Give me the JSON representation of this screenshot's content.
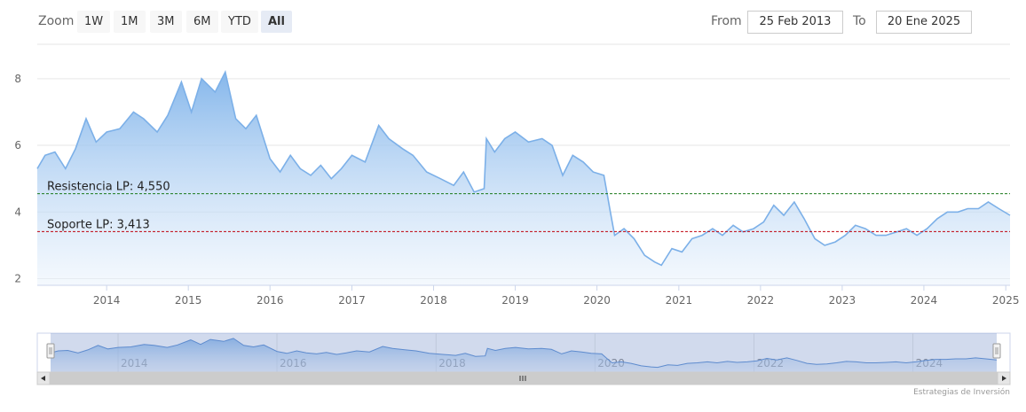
{
  "toolbar": {
    "zoom_label": "Zoom",
    "buttons": [
      "1W",
      "1M",
      "3M",
      "6M",
      "YTD",
      "All"
    ],
    "active_button": "All",
    "from_label": "From",
    "from_value": "25 Feb 2013",
    "to_label": "To",
    "to_value": "20 Ene 2025"
  },
  "credit": "Estrategias de Inversión",
  "colors": {
    "line": "#7cb0e8",
    "area_top": "#8bbaec",
    "resistance": "#1a7a1a",
    "support": "#c0000c",
    "navigator_mask": "rgba(102,133,194,0.3)"
  },
  "chart_data": {
    "type": "area",
    "x_axis": {
      "type": "date",
      "start": "2013-02-25",
      "end": "2025-01-20"
    },
    "ylim": [
      1.8,
      8.9
    ],
    "yticks": [
      2,
      4,
      6,
      8
    ],
    "xticks": [
      "2014",
      "2015",
      "2016",
      "2017",
      "2018",
      "2019",
      "2020",
      "2021",
      "2022",
      "2023",
      "2024",
      "2025"
    ],
    "navigator_ticks": [
      "2014",
      "2016",
      "2018",
      "2020",
      "2022",
      "2024"
    ],
    "grid": true,
    "series": [
      {
        "points": [
          [
            "2013-02-25",
            5.3
          ],
          [
            "2013-04-01",
            5.7
          ],
          [
            "2013-05-15",
            5.8
          ],
          [
            "2013-07-01",
            5.3
          ],
          [
            "2013-08-15",
            5.9
          ],
          [
            "2013-10-01",
            6.8
          ],
          [
            "2013-11-15",
            6.1
          ],
          [
            "2014-01-01",
            6.4
          ],
          [
            "2014-03-01",
            6.5
          ],
          [
            "2014-05-01",
            7.0
          ],
          [
            "2014-06-15",
            6.8
          ],
          [
            "2014-08-15",
            6.4
          ],
          [
            "2014-10-01",
            6.9
          ],
          [
            "2014-12-01",
            7.9
          ],
          [
            "2015-01-15",
            7.0
          ],
          [
            "2015-03-01",
            8.0
          ],
          [
            "2015-05-01",
            7.6
          ],
          [
            "2015-06-15",
            8.2
          ],
          [
            "2015-08-01",
            6.8
          ],
          [
            "2015-09-15",
            6.5
          ],
          [
            "2015-11-01",
            6.9
          ],
          [
            "2016-01-01",
            5.6
          ],
          [
            "2016-02-15",
            5.2
          ],
          [
            "2016-04-01",
            5.7
          ],
          [
            "2016-05-15",
            5.3
          ],
          [
            "2016-07-01",
            5.1
          ],
          [
            "2016-08-15",
            5.4
          ],
          [
            "2016-10-01",
            5.0
          ],
          [
            "2016-11-15",
            5.3
          ],
          [
            "2017-01-01",
            5.7
          ],
          [
            "2017-03-01",
            5.5
          ],
          [
            "2017-05-01",
            6.6
          ],
          [
            "2017-06-15",
            6.2
          ],
          [
            "2017-08-15",
            5.9
          ],
          [
            "2017-10-01",
            5.7
          ],
          [
            "2017-12-01",
            5.2
          ],
          [
            "2018-02-01",
            5.0
          ],
          [
            "2018-04-01",
            4.8
          ],
          [
            "2018-05-15",
            5.2
          ],
          [
            "2018-07-01",
            4.6
          ],
          [
            "2018-08-15",
            4.7
          ],
          [
            "2018-08-25",
            6.2
          ],
          [
            "2018-10-01",
            5.8
          ],
          [
            "2018-11-15",
            6.2
          ],
          [
            "2019-01-01",
            6.4
          ],
          [
            "2019-03-01",
            6.1
          ],
          [
            "2019-05-01",
            6.2
          ],
          [
            "2019-06-15",
            6.0
          ],
          [
            "2019-08-01",
            5.1
          ],
          [
            "2019-09-15",
            5.7
          ],
          [
            "2019-11-01",
            5.5
          ],
          [
            "2019-12-15",
            5.2
          ],
          [
            "2020-02-01",
            5.1
          ],
          [
            "2020-03-01",
            4.0
          ],
          [
            "2020-03-20",
            3.3
          ],
          [
            "2020-05-01",
            3.5
          ],
          [
            "2020-06-15",
            3.2
          ],
          [
            "2020-08-01",
            2.7
          ],
          [
            "2020-09-15",
            2.5
          ],
          [
            "2020-10-15",
            2.4
          ],
          [
            "2020-12-01",
            2.9
          ],
          [
            "2021-01-15",
            2.8
          ],
          [
            "2021-03-01",
            3.2
          ],
          [
            "2021-04-15",
            3.3
          ],
          [
            "2021-06-01",
            3.5
          ],
          [
            "2021-07-15",
            3.3
          ],
          [
            "2021-09-01",
            3.6
          ],
          [
            "2021-10-15",
            3.4
          ],
          [
            "2021-12-01",
            3.5
          ],
          [
            "2022-01-15",
            3.7
          ],
          [
            "2022-03-01",
            4.2
          ],
          [
            "2022-04-15",
            3.9
          ],
          [
            "2022-06-01",
            4.3
          ],
          [
            "2022-07-15",
            3.8
          ],
          [
            "2022-09-01",
            3.2
          ],
          [
            "2022-10-15",
            3.0
          ],
          [
            "2022-12-01",
            3.1
          ],
          [
            "2023-01-15",
            3.3
          ],
          [
            "2023-03-01",
            3.6
          ],
          [
            "2023-04-15",
            3.5
          ],
          [
            "2023-06-01",
            3.3
          ],
          [
            "2023-07-15",
            3.3
          ],
          [
            "2023-09-01",
            3.4
          ],
          [
            "2023-10-15",
            3.5
          ],
          [
            "2023-12-01",
            3.3
          ],
          [
            "2024-01-15",
            3.5
          ],
          [
            "2024-03-01",
            3.8
          ],
          [
            "2024-04-15",
            4.0
          ],
          [
            "2024-06-01",
            4.0
          ],
          [
            "2024-07-15",
            4.1
          ],
          [
            "2024-09-01",
            4.1
          ],
          [
            "2024-10-15",
            4.3
          ],
          [
            "2024-12-01",
            4.1
          ],
          [
            "2025-01-20",
            3.9
          ]
        ]
      }
    ],
    "reference_lines": [
      {
        "label": "Resistencia LP: 4,550",
        "value": 4.55,
        "color": "#1a7a1a",
        "style": "dashed"
      },
      {
        "label": "Soporte LP: 3,413",
        "value": 3.413,
        "color": "#c0000c",
        "style": "dashed"
      }
    ]
  }
}
